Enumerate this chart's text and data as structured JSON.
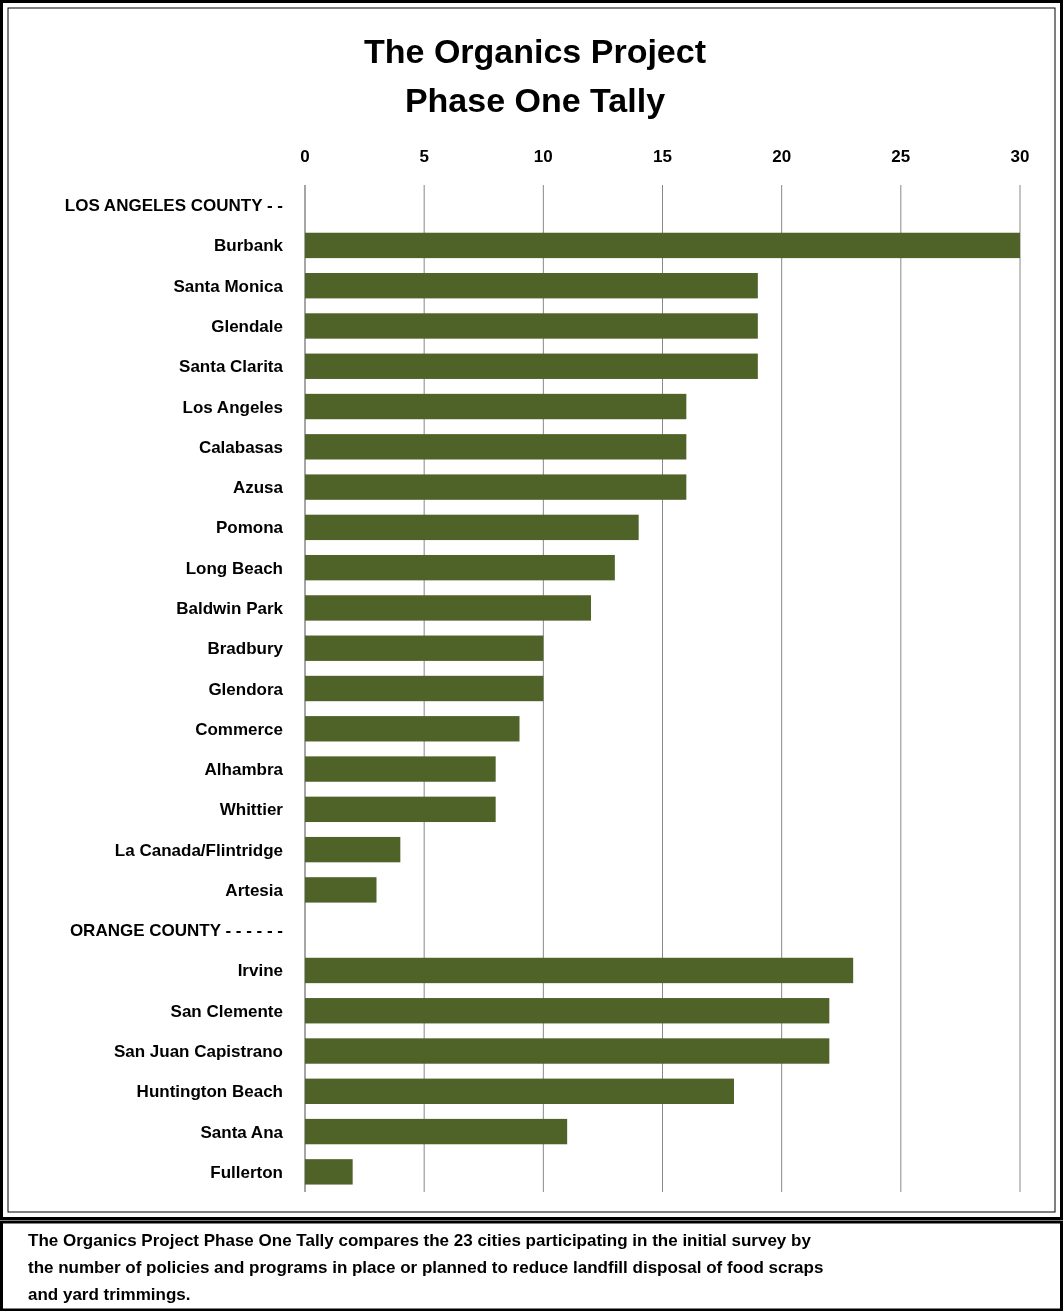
{
  "chart_data": {
    "type": "bar",
    "orientation": "horizontal",
    "title": "The Organics Project\nPhase One Tally",
    "categories": [
      "LOS ANGELES COUNTY - -",
      "Burbank",
      "Santa Monica",
      "Glendale",
      "Santa Clarita",
      "Los Angeles",
      "Calabasas",
      "Azusa",
      "Pomona",
      "Long Beach",
      "Baldwin Park",
      "Bradbury",
      "Glendora",
      "Commerce",
      "Alhambra",
      "Whittier",
      "La Canada/Flintridge",
      "Artesia",
      "ORANGE COUNTY - - - - - -",
      "Irvine",
      "San Clemente",
      "San Juan Capistrano",
      "Huntington Beach",
      "Santa Ana",
      "Fullerton"
    ],
    "values": [
      null,
      30,
      19,
      19,
      19,
      16,
      16,
      16,
      14,
      13,
      12,
      10,
      10,
      9,
      8,
      8,
      4,
      3,
      null,
      23,
      22,
      22,
      18,
      11,
      2
    ],
    "color": "#4f6228",
    "xlim": [
      0,
      30
    ],
    "xticks": [
      0,
      5,
      10,
      15,
      20,
      25,
      30
    ],
    "grid": "x",
    "annotations": [
      "The Organics Project Phase One Tally compares the 23 cities participating in the initial survey by the number of policies and programs in place or planned to reduce landfill disposal of food scraps and yard trimmings."
    ]
  }
}
